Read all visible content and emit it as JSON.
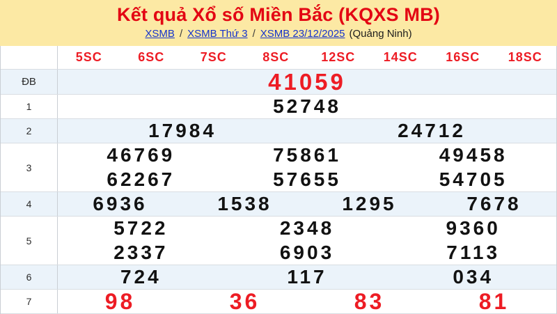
{
  "header": {
    "title": "Kết quả Xổ số Miền Bắc (KQXS MB)",
    "breadcrumb": {
      "links": [
        "XSMB",
        "XSMB Thứ 3",
        "XSMB 23/12/2025"
      ],
      "separator": "/",
      "suffix": "(Quảng Ninh)"
    }
  },
  "table": {
    "column_headers": [
      "5SC",
      "6SC",
      "7SC",
      "8SC",
      "12SC",
      "14SC",
      "16SC",
      "18SC"
    ],
    "rows": [
      {
        "label": "ĐB",
        "kind": "special",
        "striped": true,
        "lines": [
          [
            "41059"
          ]
        ]
      },
      {
        "label": "1",
        "kind": "normal",
        "striped": false,
        "lines": [
          [
            "52748"
          ]
        ]
      },
      {
        "label": "2",
        "kind": "normal",
        "striped": true,
        "lines": [
          [
            "17984",
            "24712"
          ]
        ]
      },
      {
        "label": "3",
        "kind": "normal",
        "striped": false,
        "lines": [
          [
            "46769",
            "75861",
            "49458"
          ],
          [
            "62267",
            "57655",
            "54705"
          ]
        ]
      },
      {
        "label": "4",
        "kind": "normal",
        "striped": true,
        "lines": [
          [
            "6936",
            "1538",
            "1295",
            "7678"
          ]
        ]
      },
      {
        "label": "5",
        "kind": "normal",
        "striped": false,
        "lines": [
          [
            "5722",
            "2348",
            "9360"
          ],
          [
            "2337",
            "6903",
            "7113"
          ]
        ]
      },
      {
        "label": "6",
        "kind": "normal",
        "striped": true,
        "lines": [
          [
            "724",
            "117",
            "034"
          ]
        ]
      },
      {
        "label": "7",
        "kind": "red",
        "striped": false,
        "lines": [
          [
            "98",
            "36",
            "83",
            "81"
          ]
        ]
      }
    ]
  },
  "colors": {
    "band_yellow": "#fce9a4",
    "title_red": "#e30613",
    "number_red": "#ed1c24",
    "stripe_blue": "#ebf3fa",
    "link_blue": "#1433cc",
    "number_black": "#121212"
  }
}
